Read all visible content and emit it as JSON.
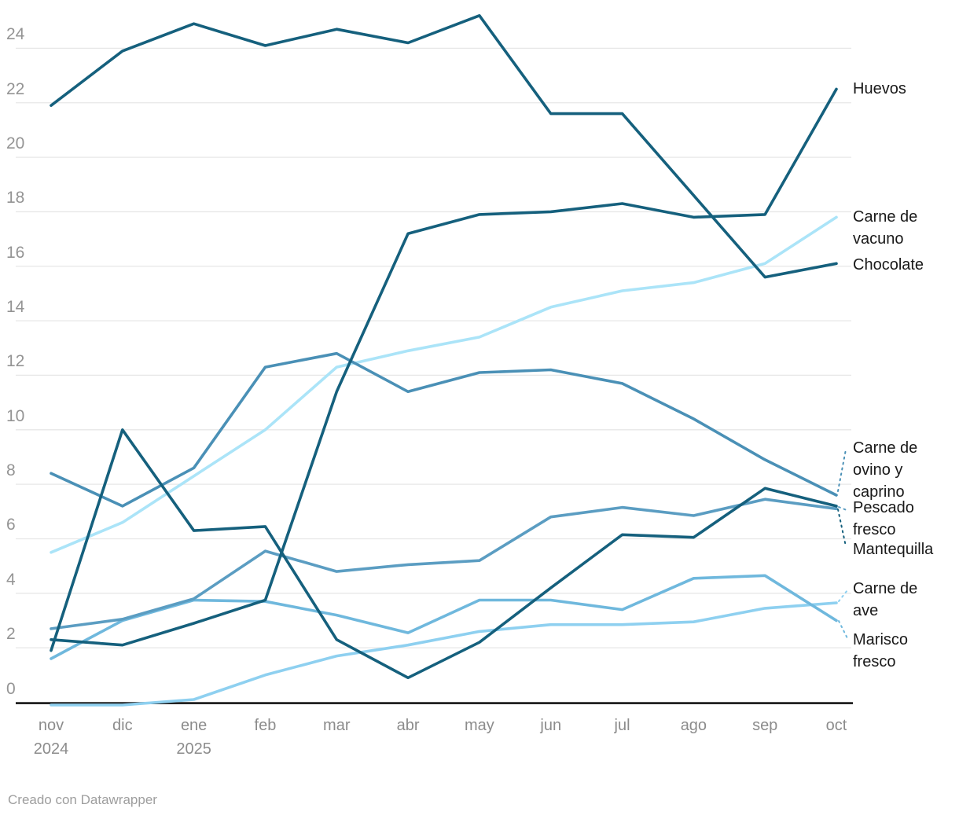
{
  "chart_data": {
    "type": "line",
    "title": "",
    "xlabel": "",
    "ylabel": "",
    "ylim": [
      -0.5,
      25.5
    ],
    "grid": true,
    "legend_position": "right-direct-labels",
    "y_ticks": [
      0,
      2,
      4,
      6,
      8,
      10,
      12,
      14,
      16,
      18,
      20,
      22,
      24
    ],
    "x_categories": [
      "nov",
      "dic",
      "ene",
      "feb",
      "mar",
      "abr",
      "may",
      "jun",
      "jul",
      "ago",
      "sep",
      "oct"
    ],
    "x_year_labels": [
      {
        "index": 0,
        "label": "2024"
      },
      {
        "index": 2,
        "label": "2025"
      }
    ],
    "series": [
      {
        "name": "Carne de vacuno",
        "label_lines": [
          "Carne de",
          "vacuno"
        ],
        "color": "#abe4f8",
        "values": [
          5.5,
          6.6,
          8.3,
          10.0,
          12.3,
          12.9,
          13.4,
          14.5,
          15.1,
          15.4,
          16.1,
          17.8
        ]
      },
      {
        "name": "Carne de ave",
        "label_lines": [
          "Carne de",
          "ave"
        ],
        "color": "#8ed0f0",
        "values": [
          -0.1,
          -0.1,
          0.1,
          1.0,
          1.7,
          2.1,
          2.6,
          2.85,
          2.85,
          2.95,
          3.45,
          3.65
        ]
      },
      {
        "name": "Marisco fresco",
        "label_lines": [
          "Marisco",
          "fresco"
        ],
        "color": "#6fb8dd",
        "values": [
          1.6,
          3.0,
          3.75,
          3.7,
          3.2,
          2.55,
          3.75,
          3.75,
          3.4,
          4.55,
          4.65,
          3.0
        ]
      },
      {
        "name": "Pescado fresco",
        "label_lines": [
          "Pescado",
          "fresco"
        ],
        "color": "#5b9dc2",
        "values": [
          2.7,
          3.05,
          3.8,
          5.55,
          4.8,
          5.05,
          5.2,
          6.8,
          7.15,
          6.85,
          7.45,
          7.1
        ]
      },
      {
        "name": "Carne de ovino y caprino",
        "label_lines": [
          "Carne de",
          "ovino y",
          "caprino"
        ],
        "color": "#4a90b6",
        "values": [
          8.4,
          7.2,
          8.6,
          12.3,
          12.8,
          11.4,
          12.1,
          12.2,
          11.7,
          10.4,
          8.9,
          7.6
        ]
      },
      {
        "name": "Mantequilla",
        "label_lines": [
          "Mantequilla"
        ],
        "color": "#15607d",
        "values": [
          1.9,
          10.0,
          6.3,
          6.45,
          2.3,
          0.9,
          2.2,
          4.2,
          6.15,
          6.05,
          7.85,
          7.2
        ]
      },
      {
        "name": "Huevos",
        "label_lines": [
          "Huevos"
        ],
        "color": "#15607d",
        "values": [
          2.3,
          2.1,
          2.9,
          3.75,
          11.4,
          17.2,
          17.9,
          18.0,
          18.3,
          17.8,
          17.9,
          22.5
        ]
      },
      {
        "name": "Chocolate",
        "label_lines": [
          "Chocolate"
        ],
        "color": "#15607d",
        "values": [
          21.9,
          23.9,
          24.9,
          24.1,
          24.7,
          24.2,
          25.2,
          21.6,
          21.6,
          18.6,
          15.6,
          16.1
        ]
      }
    ]
  },
  "footer": {
    "credit": "Creado con Datawrapper"
  }
}
